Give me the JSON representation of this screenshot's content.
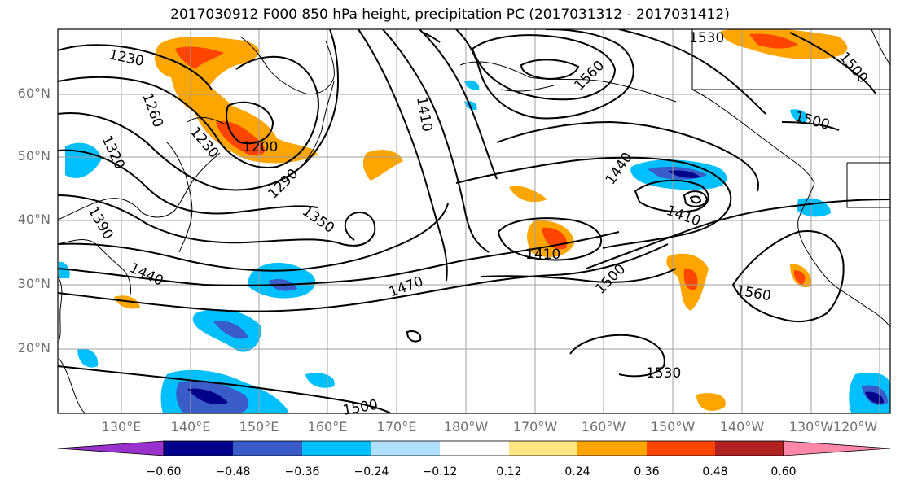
{
  "title": "2017030912 F000 850 hPa height, precipitation PC (2017031312 - 2017031412)",
  "lat_labels": [
    "60°N",
    "50°N",
    "40°N",
    "30°N",
    "20°N"
  ],
  "lon_labels": [
    "130°E",
    "140°E",
    "150°E",
    "160°E",
    "170°E",
    "180°W",
    "170°W",
    "160°W",
    "150°W",
    "140°W",
    "130°W",
    "120°W"
  ],
  "contour_labels": [
    "1230",
    "1260",
    "1230",
    "1200",
    "1290",
    "1320",
    "1350",
    "1390",
    "1440",
    "1470",
    "1410",
    "1560",
    "1440",
    "1410",
    "1410",
    "1500",
    "1530",
    "1500",
    "1500",
    "1560",
    "1530",
    "1500"
  ],
  "colorbar": {
    "ticks": [
      "−0.60",
      "−0.48",
      "−0.36",
      "−0.24",
      "−0.12",
      "0.12",
      "0.24",
      "0.36",
      "0.48",
      "0.60"
    ],
    "colors": [
      "#9932cc",
      "#00008b",
      "#3a5cc8",
      "#00bfff",
      "#b0e0ff",
      "#ffffff",
      "#ffe680",
      "#ffa500",
      "#ff4500",
      "#b22222",
      "#ff88aa"
    ]
  },
  "colors": {
    "land_line": "#000000",
    "grid": "#a0a0a0",
    "contour": "#000000",
    "label_gray": "#707070"
  }
}
